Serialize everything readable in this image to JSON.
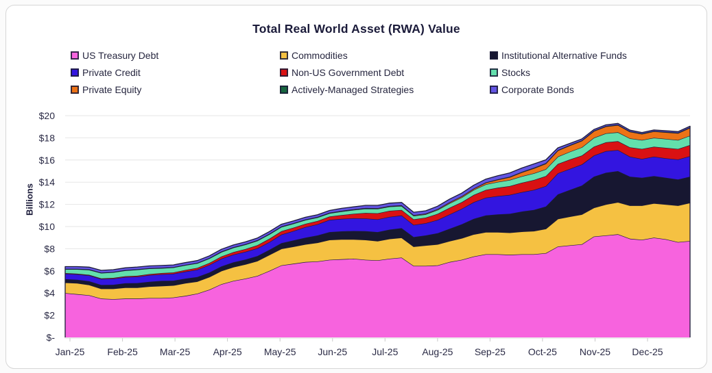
{
  "header": {
    "title": "Total Real World Asset (RWA) Value"
  },
  "legend": {
    "position": "top",
    "items": [
      {
        "label": "US Treasury Debt",
        "color": "#F763DE"
      },
      {
        "label": "Commodities",
        "color": "#F5C142"
      },
      {
        "label": "Institutional Alternative Funds",
        "color": "#171731"
      },
      {
        "label": "Private Credit",
        "color": "#3315E0"
      },
      {
        "label": "Non-US Government Debt",
        "color": "#D91113"
      },
      {
        "label": "Stocks",
        "color": "#63DFAC"
      },
      {
        "label": "Private Equity",
        "color": "#EC7316"
      },
      {
        "label": "Actively-Managed Strategies",
        "color": "#17663F"
      },
      {
        "label": "Corporate Bonds",
        "color": "#6355E3"
      }
    ]
  },
  "axes": {
    "y_label": "Billions",
    "y_tick_labels": [
      "$-",
      "$2",
      "$4",
      "$6",
      "$8",
      "$10",
      "$12",
      "$14",
      "$16",
      "$18",
      "$20"
    ],
    "x_labels": [
      "Jan-25",
      "Feb-25",
      "Mar-25",
      "Apr-25",
      "May-25",
      "Jun-25",
      "Jul-25",
      "Aug-25",
      "Sep-25",
      "Oct-25",
      "Nov-25",
      "Dec-25"
    ]
  },
  "chart_data": {
    "type": "area",
    "stacked": true,
    "title": "Total Real World Asset (RWA) Value",
    "xlabel": "",
    "ylabel": "Billions",
    "ylim": [
      0,
      20
    ],
    "ytick_step": 2,
    "grid": true,
    "legend_position": "top",
    "outline_color": "#1C1C38",
    "x_unit": "weekly points, Jan-25 through Dec-25",
    "x_month_labels": [
      "Jan-25",
      "Feb-25",
      "Mar-25",
      "Apr-25",
      "May-25",
      "Jun-25",
      "Jul-25",
      "Aug-25",
      "Sep-25",
      "Oct-25",
      "Nov-25",
      "Dec-25"
    ],
    "values_unit": "USD billions",
    "series": [
      {
        "name": "US Treasury Debt",
        "color": "#F763DE",
        "values": [
          4.0,
          3.9,
          3.8,
          3.5,
          3.45,
          3.5,
          3.5,
          3.55,
          3.55,
          3.6,
          3.75,
          3.95,
          4.3,
          4.8,
          5.1,
          5.3,
          5.55,
          6.0,
          6.5,
          6.65,
          6.8,
          6.85,
          7.0,
          7.05,
          7.1,
          7.0,
          6.95,
          7.1,
          7.2,
          6.45,
          6.45,
          6.5,
          6.8,
          7.0,
          7.3,
          7.5,
          7.5,
          7.45,
          7.5,
          7.5,
          7.6,
          8.2,
          8.3,
          8.4,
          9.1,
          9.2,
          9.3,
          8.9,
          8.8,
          9.0,
          8.85,
          8.6,
          8.7
        ]
      },
      {
        "name": "Commodities",
        "color": "#F5C142",
        "values": [
          0.95,
          1.0,
          0.95,
          0.9,
          0.95,
          1.0,
          1.0,
          1.05,
          1.1,
          1.1,
          1.15,
          1.1,
          1.15,
          1.2,
          1.25,
          1.3,
          1.35,
          1.45,
          1.5,
          1.55,
          1.6,
          1.7,
          1.8,
          1.8,
          1.75,
          1.8,
          1.75,
          1.8,
          1.8,
          1.75,
          1.85,
          1.9,
          1.9,
          1.95,
          2.0,
          2.0,
          2.0,
          2.0,
          2.05,
          2.1,
          2.2,
          2.5,
          2.6,
          2.7,
          2.6,
          2.8,
          2.9,
          3.0,
          3.1,
          3.1,
          3.15,
          3.3,
          3.45
        ]
      },
      {
        "name": "Institutional Alternative Funds",
        "color": "#171731",
        "values": [
          0.3,
          0.3,
          0.32,
          0.33,
          0.35,
          0.38,
          0.4,
          0.42,
          0.45,
          0.42,
          0.4,
          0.4,
          0.4,
          0.4,
          0.42,
          0.42,
          0.44,
          0.45,
          0.5,
          0.55,
          0.6,
          0.65,
          0.7,
          0.72,
          0.75,
          0.78,
          0.8,
          0.82,
          0.85,
          0.85,
          0.9,
          1.0,
          1.1,
          1.25,
          1.4,
          1.5,
          1.6,
          1.7,
          1.8,
          1.9,
          2.0,
          2.2,
          2.4,
          2.6,
          2.8,
          2.85,
          2.8,
          2.6,
          2.5,
          2.45,
          2.4,
          2.35,
          2.35
        ]
      },
      {
        "name": "Private Credit",
        "color": "#3315E0",
        "values": [
          0.5,
          0.5,
          0.52,
          0.54,
          0.55,
          0.56,
          0.58,
          0.6,
          0.6,
          0.62,
          0.64,
          0.66,
          0.68,
          0.7,
          0.7,
          0.7,
          0.7,
          0.7,
          0.78,
          0.85,
          0.95,
          1.0,
          1.1,
          1.12,
          1.15,
          1.15,
          1.15,
          1.15,
          1.15,
          1.1,
          1.1,
          1.2,
          1.3,
          1.4,
          1.5,
          1.6,
          1.65,
          1.7,
          1.75,
          1.8,
          1.85,
          1.9,
          1.9,
          1.9,
          1.9,
          1.95,
          1.9,
          1.8,
          1.7,
          1.75,
          1.75,
          1.8,
          1.85
        ]
      },
      {
        "name": "Non-US Government Debt",
        "color": "#D91113",
        "values": [
          0.05,
          0.05,
          0.06,
          0.06,
          0.07,
          0.08,
          0.08,
          0.09,
          0.1,
          0.12,
          0.14,
          0.16,
          0.18,
          0.2,
          0.22,
          0.25,
          0.28,
          0.3,
          0.3,
          0.3,
          0.3,
          0.3,
          0.3,
          0.35,
          0.4,
          0.5,
          0.55,
          0.55,
          0.5,
          0.5,
          0.5,
          0.55,
          0.6,
          0.6,
          0.65,
          0.7,
          0.75,
          0.8,
          0.85,
          0.9,
          0.9,
          0.85,
          0.85,
          0.8,
          0.8,
          0.8,
          0.8,
          0.85,
          0.9,
          0.9,
          0.95,
          0.95,
          1.0
        ]
      },
      {
        "name": "Stocks",
        "color": "#63DFAC",
        "values": [
          0.35,
          0.4,
          0.45,
          0.48,
          0.5,
          0.52,
          0.55,
          0.5,
          0.45,
          0.44,
          0.43,
          0.42,
          0.41,
          0.4,
          0.4,
          0.4,
          0.4,
          0.4,
          0.38,
          0.36,
          0.34,
          0.32,
          0.3,
          0.32,
          0.35,
          0.38,
          0.4,
          0.38,
          0.35,
          0.32,
          0.3,
          0.35,
          0.4,
          0.42,
          0.46,
          0.5,
          0.52,
          0.55,
          0.58,
          0.6,
          0.62,
          0.65,
          0.7,
          0.75,
          0.8,
          0.8,
          0.8,
          0.8,
          0.8,
          0.8,
          0.8,
          0.8,
          0.85
        ]
      },
      {
        "name": "Private Equity",
        "color": "#EC7316",
        "values": [
          0.02,
          0.02,
          0.02,
          0.02,
          0.02,
          0.02,
          0.02,
          0.02,
          0.02,
          0.02,
          0.02,
          0.02,
          0.02,
          0.03,
          0.03,
          0.03,
          0.03,
          0.03,
          0.03,
          0.03,
          0.03,
          0.03,
          0.03,
          0.04,
          0.04,
          0.04,
          0.04,
          0.04,
          0.05,
          0.05,
          0.05,
          0.06,
          0.08,
          0.09,
          0.1,
          0.15,
          0.2,
          0.25,
          0.35,
          0.45,
          0.5,
          0.55,
          0.55,
          0.58,
          0.6,
          0.62,
          0.65,
          0.6,
          0.55,
          0.58,
          0.6,
          0.62,
          0.7
        ]
      },
      {
        "name": "Actively-Managed Strategies",
        "color": "#17663F",
        "values": [
          0.02,
          0.02,
          0.02,
          0.02,
          0.02,
          0.02,
          0.02,
          0.02,
          0.02,
          0.02,
          0.02,
          0.02,
          0.02,
          0.02,
          0.02,
          0.02,
          0.02,
          0.02,
          0.02,
          0.02,
          0.02,
          0.02,
          0.02,
          0.02,
          0.02,
          0.02,
          0.02,
          0.02,
          0.02,
          0.02,
          0.02,
          0.02,
          0.02,
          0.02,
          0.02,
          0.03,
          0.04,
          0.05,
          0.05,
          0.05,
          0.05,
          0.05,
          0.05,
          0.05,
          0.05,
          0.05,
          0.05,
          0.05,
          0.05,
          0.05,
          0.05,
          0.05,
          0.05
        ]
      },
      {
        "name": "Corporate Bonds",
        "color": "#6355E3",
        "values": [
          0.2,
          0.2,
          0.2,
          0.2,
          0.2,
          0.2,
          0.2,
          0.2,
          0.2,
          0.2,
          0.2,
          0.2,
          0.2,
          0.2,
          0.2,
          0.2,
          0.2,
          0.2,
          0.2,
          0.2,
          0.2,
          0.2,
          0.2,
          0.22,
          0.22,
          0.24,
          0.25,
          0.25,
          0.25,
          0.25,
          0.25,
          0.26,
          0.28,
          0.28,
          0.3,
          0.3,
          0.32,
          0.34,
          0.35,
          0.35,
          0.3,
          0.2,
          0.15,
          0.12,
          0.1,
          0.1,
          0.1,
          0.09,
          0.08,
          0.08,
          0.09,
          0.09,
          0.1
        ]
      }
    ]
  }
}
